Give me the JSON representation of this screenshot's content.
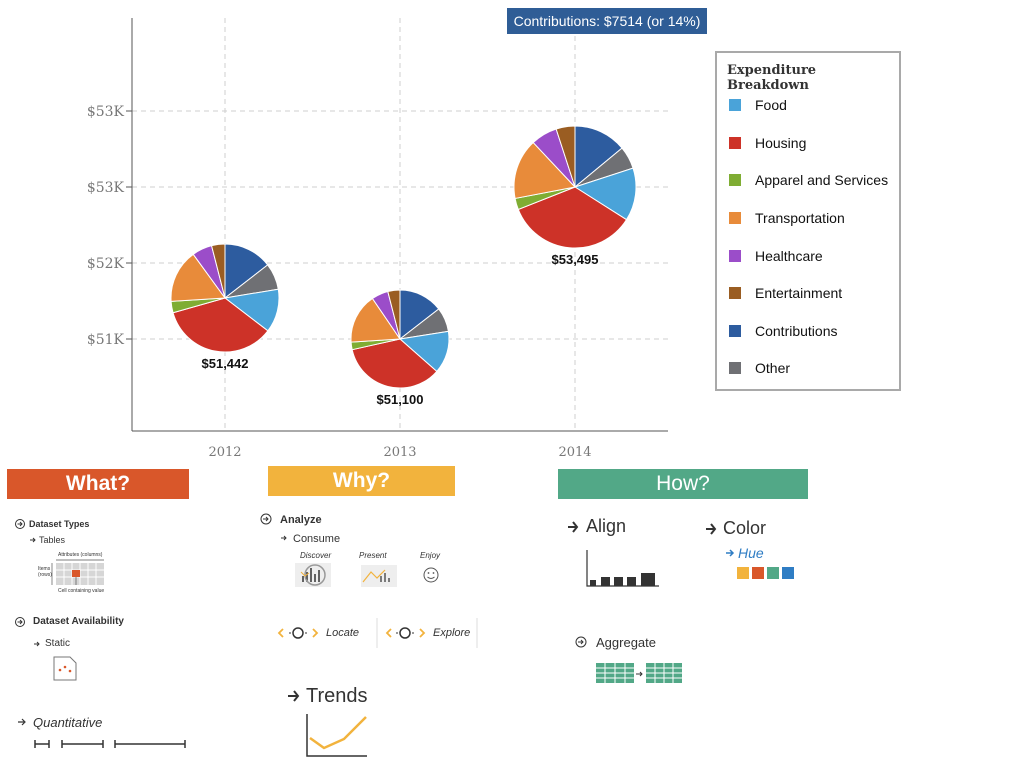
{
  "chart_data": {
    "type": "scatter",
    "title": "",
    "xlabel": "",
    "ylabel": "",
    "x_ticks": [
      "2012",
      "2013",
      "2014"
    ],
    "y_ticks": [
      "$51K",
      "$52K",
      "$53K",
      "$53K"
    ],
    "ylim": [
      50000,
      54300
    ],
    "series_names": [
      "Food",
      "Housing",
      "Apparel and Services",
      "Transportation",
      "Healthcare",
      "Entertainment",
      "Contributions",
      "Other"
    ],
    "colors": [
      "#4aa3d9",
      "#cd3228",
      "#7fad33",
      "#e88b3a",
      "#9b4dc9",
      "#9a5d22",
      "#2d5c9f",
      "#6f7074"
    ],
    "points": [
      {
        "year": "2012",
        "total": 51442,
        "label": "$51,442",
        "y_value": 51500,
        "slices": [
          13.0,
          35.2,
          3.4,
          16.0,
          6.0,
          4.0,
          14.5,
          7.9
        ]
      },
      {
        "year": "2013",
        "total": 51100,
        "label": "$51,100",
        "y_value": 51000,
        "slices": [
          14.0,
          35.0,
          2.5,
          16.5,
          5.5,
          4.0,
          14.5,
          8.0
        ]
      },
      {
        "year": "2014",
        "total": 53495,
        "label": "$53,495",
        "y_value": 53000,
        "slices": [
          14.0,
          35.0,
          3.0,
          16.0,
          7.0,
          5.0,
          14.0,
          6.0
        ]
      }
    ]
  },
  "legend": {
    "title": "Expenditure Breakdown",
    "items": [
      {
        "label": "Food",
        "color": "#4aa3d9"
      },
      {
        "label": "Housing",
        "color": "#cd3228"
      },
      {
        "label": "Apparel and Services",
        "color": "#7fad33"
      },
      {
        "label": "Transportation",
        "color": "#e88b3a"
      },
      {
        "label": "Healthcare",
        "color": "#9b4dc9"
      },
      {
        "label": "Entertainment",
        "color": "#9a5d22"
      },
      {
        "label": "Contributions",
        "color": "#2d5c9f"
      },
      {
        "label": "Other",
        "color": "#6f7074"
      }
    ]
  },
  "tooltip": "Contributions: $7514 (or 14%)",
  "banners": {
    "what": "What?",
    "why": "Why?",
    "how": "How?"
  },
  "what_section": {
    "dataset_types": "Dataset Types",
    "tables": "Tables",
    "attributes_columns": "Attributes (columns)",
    "items": "Items",
    "rows": "(rows)",
    "cell_value": "Cell containing value",
    "dataset_availability": "Dataset Availability",
    "static": "Static",
    "quantitative": "Quantitative"
  },
  "why_section": {
    "analyze": "Analyze",
    "consume": "Consume",
    "discover": "Discover",
    "present": "Present",
    "enjoy": "Enjoy",
    "locate": "Locate",
    "explore": "Explore",
    "trends": "Trends"
  },
  "how_section": {
    "align": "Align",
    "color": "Color",
    "hue": "Hue",
    "aggregate": "Aggregate"
  },
  "colors": {
    "what_banner": "#d9572a",
    "why_banner": "#f2b33d",
    "how_banner": "#52a887",
    "accent_blue": "#2f7dc4"
  }
}
